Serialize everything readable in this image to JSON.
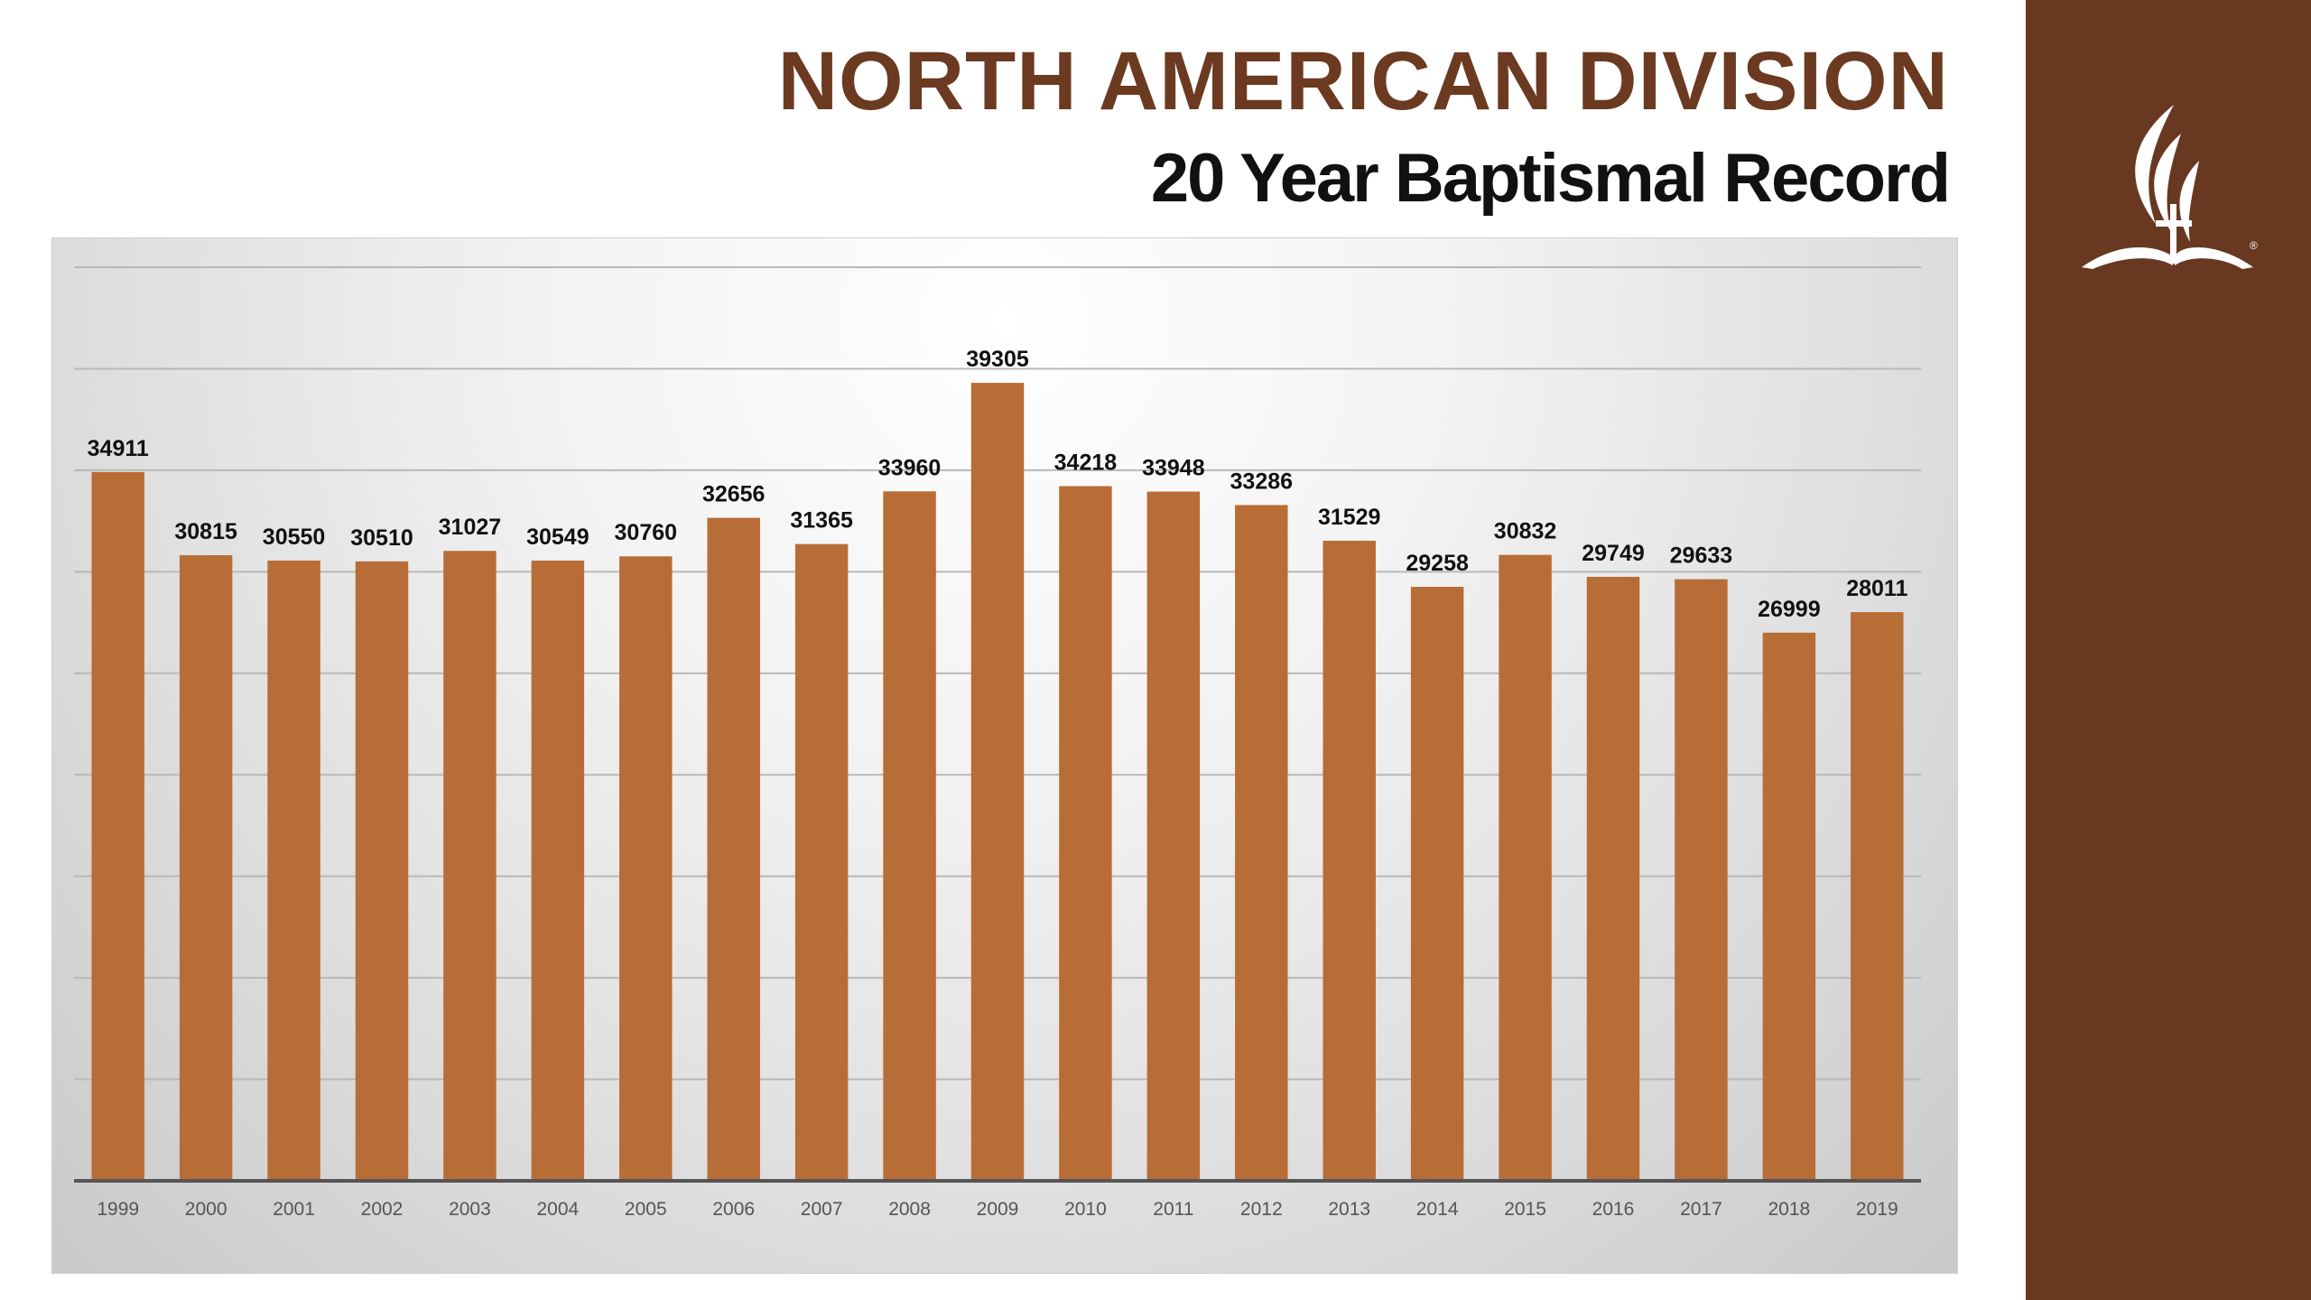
{
  "slide": {
    "title": "NORTH AMERICAN DIVISION",
    "subtitle": "20 Year Baptismal Record"
  },
  "logo": {
    "icon": "adventist-church-logo",
    "mark": "®"
  },
  "colors": {
    "title": "#6b3a20",
    "sidebar": "#693821",
    "bar": "#b86c36"
  },
  "chart_data": {
    "type": "bar",
    "categories": [
      "1999",
      "2000",
      "2001",
      "2002",
      "2003",
      "2004",
      "2005",
      "2006",
      "2007",
      "2008",
      "2009",
      "2010",
      "2011",
      "2012",
      "2013",
      "2014",
      "2015",
      "2016",
      "2017",
      "2018",
      "2019"
    ],
    "values": [
      34911,
      30815,
      30550,
      30510,
      31027,
      30549,
      30760,
      32656,
      31365,
      33960,
      39305,
      34218,
      33948,
      33286,
      31529,
      29258,
      30832,
      29749,
      29633,
      26999,
      28011
    ],
    "ylim": [
      0,
      45000
    ],
    "data_labels": true,
    "grid": true,
    "legend": "none"
  }
}
